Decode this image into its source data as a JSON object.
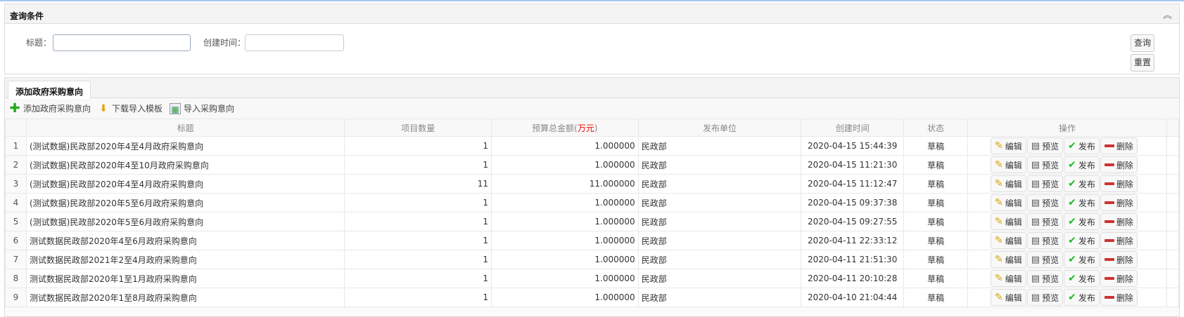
{
  "query": {
    "title": "查询条件",
    "title_label": "标题：",
    "title_value": "",
    "time_label": "创建时间：",
    "time_value": "",
    "search": "查询",
    "reset": "重置"
  },
  "tab": "添加政府采购意向",
  "toolbar": {
    "add": "添加政府采购意向",
    "download": "下载导入模板",
    "import": "导入采购意向"
  },
  "table": {
    "headers": {
      "title": "标题",
      "qty": "项目数量",
      "budget": "预算总金额(",
      "budget_unit": "万元",
      "budget_close": ")",
      "unit": "发布单位",
      "time": "创建时间",
      "status": "状态",
      "ops": "操作"
    },
    "actions": {
      "edit": "编辑",
      "preview": "预览",
      "publish": "发布",
      "delete": "删除"
    },
    "rows": [
      {
        "n": "1",
        "title": "(测试数据)民政部2020年4至4月政府采购意向",
        "qty": "1",
        "budget": "1.000000",
        "unit": "民政部",
        "time": "2020-04-15 15:44:39",
        "status": "草稿"
      },
      {
        "n": "2",
        "title": "(测试数据)民政部2020年4至10月政府采购意向",
        "qty": "1",
        "budget": "1.000000",
        "unit": "民政部",
        "time": "2020-04-15 11:21:30",
        "status": "草稿"
      },
      {
        "n": "3",
        "title": "(测试数据)民政部2020年4至4月政府采购意向",
        "qty": "11",
        "budget": "11.000000",
        "unit": "民政部",
        "time": "2020-04-15 11:12:47",
        "status": "草稿"
      },
      {
        "n": "4",
        "title": "(测试数据)民政部2020年5至6月政府采购意向",
        "qty": "1",
        "budget": "1.000000",
        "unit": "民政部",
        "time": "2020-04-15 09:37:38",
        "status": "草稿"
      },
      {
        "n": "5",
        "title": "(测试数据)民政部2020年5至6月政府采购意向",
        "qty": "1",
        "budget": "1.000000",
        "unit": "民政部",
        "time": "2020-04-15 09:27:55",
        "status": "草稿"
      },
      {
        "n": "6",
        "title": "测试数据民政部2020年4至6月政府采购意向",
        "qty": "1",
        "budget": "1.000000",
        "unit": "民政部",
        "time": "2020-04-11 22:33:12",
        "status": "草稿"
      },
      {
        "n": "7",
        "title": "测试数据民政部2021年2至4月政府采购意向",
        "qty": "1",
        "budget": "1.000000",
        "unit": "民政部",
        "time": "2020-04-11 21:51:30",
        "status": "草稿"
      },
      {
        "n": "8",
        "title": "测试数据民政部2020年1至1月政府采购意向",
        "qty": "1",
        "budget": "1.000000",
        "unit": "民政部",
        "time": "2020-04-11 20:10:28",
        "status": "草稿"
      },
      {
        "n": "9",
        "title": "测试数据民政部2020年1至8月政府采购意向",
        "qty": "1",
        "budget": "1.000000",
        "unit": "民政部",
        "time": "2020-04-10 21:04:44",
        "status": "草稿"
      }
    ]
  }
}
